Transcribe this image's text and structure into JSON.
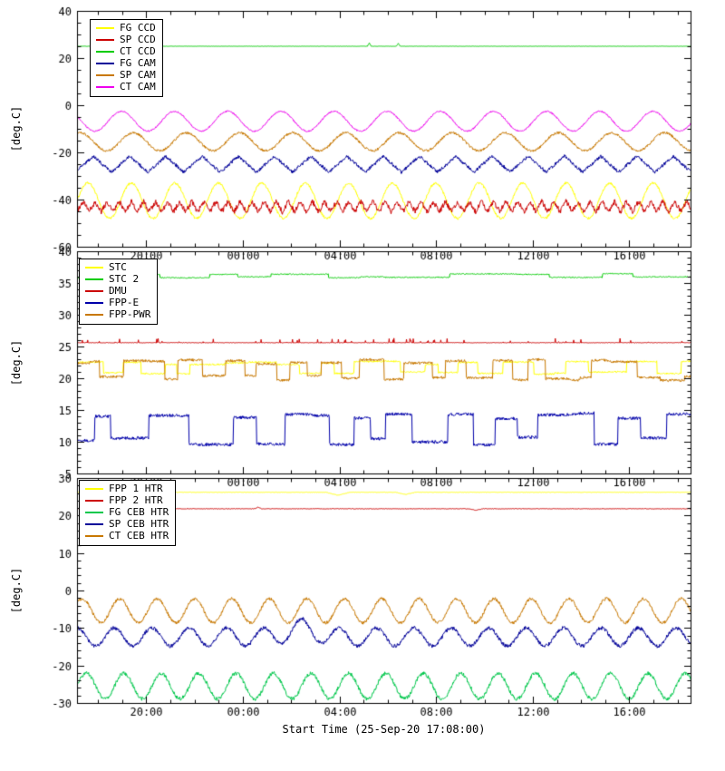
{
  "figure": {
    "bg": "#ffffff",
    "fg": "#000000",
    "x_title": "Start Time (25-Sep-20 17:08:00)",
    "x_tick_labels": [
      "20:00",
      "00:00",
      "04:00",
      "08:00",
      "12:00",
      "16:00"
    ],
    "x_tick_hours": [
      2.8667,
      6.8667,
      10.8667,
      14.8667,
      18.8667,
      22.8667
    ],
    "x_minor_step_hours": 1,
    "x_range_hours": [
      0,
      25.4
    ]
  },
  "chart_data": [
    {
      "type": "line",
      "panel": "top",
      "ylabel": "[deg.C]",
      "ylim": [
        -60,
        40
      ],
      "yticks": [
        -60,
        -40,
        -20,
        0,
        20,
        40
      ],
      "y_minor_step": 5,
      "legend_position": "top-left",
      "series": [
        {
          "name": "FG CCD",
          "color": "#ffff00",
          "shape": "sine",
          "mean": -40.5,
          "amplitude": 7.5,
          "period_hours": 1.8,
          "phase": 0.0,
          "noise": 0.5
        },
        {
          "name": "SP CCD",
          "color": "#cc0000",
          "shape": "jagged",
          "mean": -43.0,
          "amplitude": 2.2,
          "period_hours": 0.5,
          "phase": 0.0,
          "noise": 1.1
        },
        {
          "name": "CT CCD",
          "color": "#00cc00",
          "shape": "flat",
          "mean": 25.0,
          "noise": 0.06,
          "spikes": [
            {
              "t": 12.1,
              "h": 1.4,
              "w": 0.08
            },
            {
              "t": 13.3,
              "h": 1.2,
              "w": 0.08
            }
          ]
        },
        {
          "name": "FG CAM",
          "color": "#000099",
          "shape": "jagged",
          "mean": -25.0,
          "amplitude": 3.4,
          "period_hours": 1.5,
          "phase": 0.3,
          "noise": 0.7
        },
        {
          "name": "SP CAM",
          "color": "#c87800",
          "shape": "sine",
          "mean": -15.5,
          "amplitude": 3.8,
          "period_hours": 2.2,
          "phase": 1.2,
          "noise": 0.5
        },
        {
          "name": "CT CAM",
          "color": "#ee00ee",
          "shape": "sine",
          "mean": -6.8,
          "amplitude": 4.2,
          "period_hours": 2.2,
          "phase": 2.6,
          "noise": 0.3
        }
      ]
    },
    {
      "type": "line",
      "panel": "middle",
      "ylabel": "[deg.C]",
      "ylim": [
        5,
        40
      ],
      "yticks": [
        5,
        10,
        15,
        20,
        25,
        30,
        35,
        40
      ],
      "y_minor_step": 1,
      "legend_position": "top-left",
      "series": [
        {
          "name": "STC",
          "color": "#ffff00",
          "shape": "steps",
          "mean": 21.6,
          "amplitude": 1.0,
          "period_hours": 1.1,
          "noise": 0.12
        },
        {
          "name": "STC 2",
          "color": "#00cc00",
          "shape": "steps",
          "mean": 36.15,
          "amplitude": 0.3,
          "period_hours": 2.4,
          "noise": 0.08
        },
        {
          "name": "DMU",
          "color": "#cc0000",
          "shape": "flat",
          "mean": 25.6,
          "noise": 0.04,
          "spike_prob": 0.05,
          "spike_amp": 0.7
        },
        {
          "name": "FPP-E",
          "color": "#0000aa",
          "shape": "steps",
          "mean": 12.0,
          "amplitude": 2.3,
          "period_hours": 1.3,
          "noise": 0.25
        },
        {
          "name": "FPP-PWR",
          "color": "#c87800",
          "shape": "steps",
          "mean": 21.3,
          "amplitude": 1.5,
          "period_hours": 0.9,
          "noise": 0.2
        }
      ]
    },
    {
      "type": "line",
      "panel": "bottom",
      "ylabel": "[deg.C]",
      "ylim": [
        -30,
        30
      ],
      "yticks": [
        -30,
        -20,
        -10,
        0,
        10,
        20,
        30
      ],
      "y_minor_step": 2,
      "legend_position": "top-left",
      "series": [
        {
          "name": "FPP 1 HTR",
          "color": "#ffff00",
          "shape": "flat",
          "mean": 26.2,
          "noise": 0.06,
          "spikes": [
            {
              "t": 10.8,
              "h": -0.8,
              "w": 0.5
            },
            {
              "t": 13.6,
              "h": -0.6,
              "w": 0.4
            }
          ]
        },
        {
          "name": "FPP 2 HTR",
          "color": "#cc0000",
          "shape": "flat",
          "mean": 21.8,
          "noise": 0.08,
          "spikes": [
            {
              "t": 7.5,
              "h": 0.4,
              "w": 0.15
            },
            {
              "t": 16.5,
              "h": -0.4,
              "w": 0.3
            }
          ]
        },
        {
          "name": "FG CEB HTR",
          "color": "#00c84b",
          "shape": "sine",
          "mean": -25.5,
          "amplitude": 3.4,
          "period_hours": 1.55,
          "phase": 0.0,
          "noise": 0.5
        },
        {
          "name": "SP CEB HTR",
          "color": "#000099",
          "shape": "sine",
          "mean": -12.4,
          "amplitude": 2.4,
          "period_hours": 1.55,
          "phase": 1.6,
          "noise": 0.5,
          "spikes": [
            {
              "t": 9.3,
              "h": 2.6,
              "w": 1.2
            }
          ]
        },
        {
          "name": "CT CEB HTR",
          "color": "#c87800",
          "shape": "sine",
          "mean": -5.4,
          "amplitude": 3.2,
          "period_hours": 1.55,
          "phase": 0.7,
          "noise": 0.4
        }
      ]
    }
  ]
}
